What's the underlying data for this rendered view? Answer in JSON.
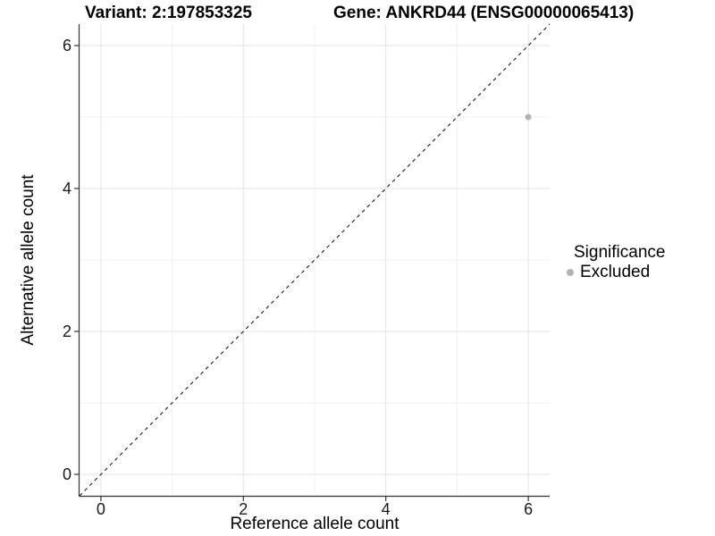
{
  "header": {
    "variant_title": "Variant: 2:197853325",
    "gene_title": "Gene: ANKRD44 (ENSG00000065413)"
  },
  "chart_data": {
    "type": "scatter",
    "title_left": "Variant: 2:197853325",
    "title_right": "Gene: ANKRD44 (ENSG00000065413)",
    "xlabel": "Reference allele count",
    "ylabel": "Alternative allele count",
    "xlim": [
      -0.3,
      6.3
    ],
    "ylim": [
      -0.3,
      6.3
    ],
    "x_ticks": [
      0,
      2,
      4,
      6
    ],
    "y_ticks": [
      0,
      2,
      4,
      6
    ],
    "x_minor_gridlines": [
      1,
      3,
      5
    ],
    "y_minor_gridlines": [
      1,
      3,
      5
    ],
    "grid": true,
    "legend_position": "right",
    "series": [
      {
        "name": "Excluded",
        "color": "#b3b3b3",
        "points": [
          {
            "x": 6,
            "y": 5
          }
        ],
        "point_radius": 3.5
      }
    ],
    "reference_line": {
      "style": "dashed",
      "slope": 1,
      "intercept": 0,
      "color": "#1a1a1a",
      "from": [
        -0.3,
        -0.3
      ],
      "to": [
        6.3,
        6.3
      ]
    },
    "legend": {
      "title": "Significance",
      "entries": [
        {
          "label": "Excluded",
          "color": "#b3b3b3"
        }
      ]
    },
    "colors": {
      "grid_major": "#e3e3e3",
      "grid_minor": "#f1f1f1",
      "axis_line": "#333333",
      "tick_mark": "#333333",
      "tick_text": "#1a1a1a",
      "title_text": "#000000",
      "background": "#ffffff"
    }
  }
}
